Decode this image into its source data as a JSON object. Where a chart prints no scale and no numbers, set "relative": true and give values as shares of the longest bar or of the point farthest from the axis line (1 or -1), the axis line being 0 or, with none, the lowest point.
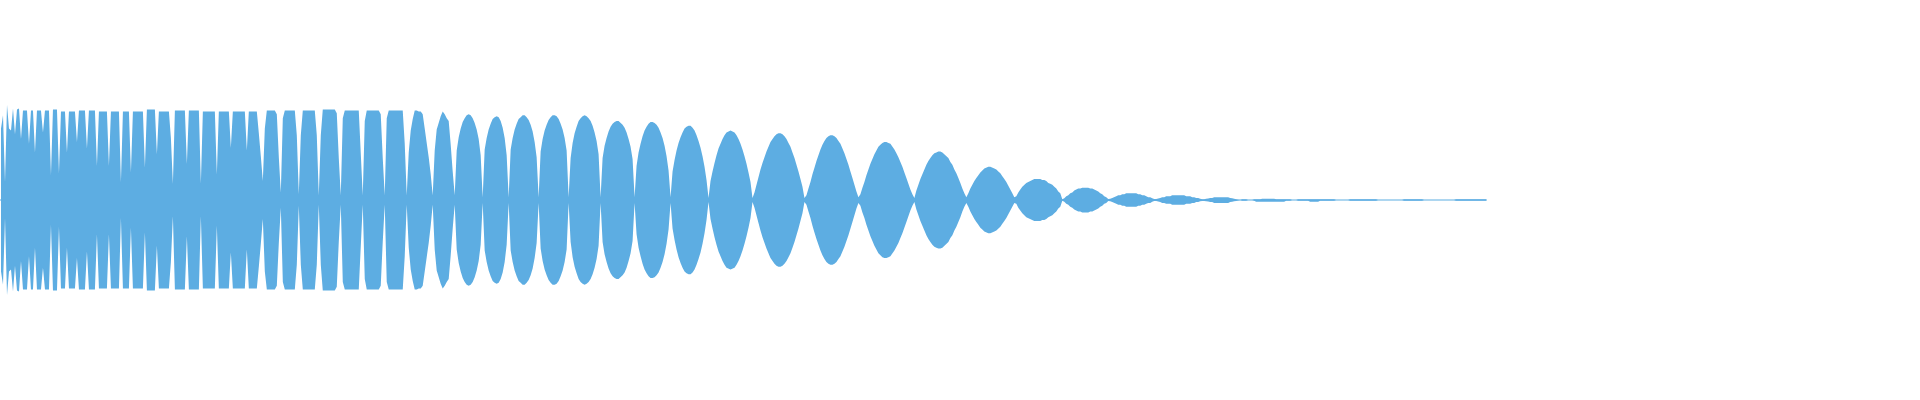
{
  "chart_data": {
    "type": "area",
    "relative": true,
    "tick_labels": false,
    "ref_lines": [
      {
        "axis": "y",
        "value": 0,
        "color": "#5dade2"
      }
    ],
    "categories": [
      null,
      null,
      null,
      null,
      null,
      null,
      null,
      null,
      null,
      null,
      null,
      null,
      null,
      null,
      null,
      null,
      null,
      null,
      null,
      null,
      null,
      null,
      null,
      null,
      null,
      null,
      null,
      null,
      null,
      null,
      null,
      null,
      null,
      null,
      null,
      null,
      null,
      null,
      null,
      null,
      null,
      null,
      null,
      null,
      null,
      null,
      null,
      null,
      null,
      null,
      null,
      null,
      null,
      null,
      null,
      null,
      null,
      null,
      null,
      null,
      null,
      null,
      null,
      null,
      null,
      null,
      null,
      null,
      null,
      null,
      null,
      null,
      null,
      null,
      null,
      null,
      null,
      null,
      null,
      null,
      null,
      null,
      null,
      null,
      null,
      null,
      null,
      null,
      null,
      null,
      null,
      null,
      null,
      null,
      null,
      null,
      null,
      null,
      null,
      null,
      null,
      null,
      null,
      null,
      null,
      null,
      null,
      null,
      null,
      null,
      null,
      null,
      null,
      null,
      null,
      null,
      null,
      null,
      null,
      null,
      null,
      null,
      null,
      null,
      null,
      null,
      null,
      null,
      null,
      null,
      null,
      null,
      null,
      null,
      null,
      null,
      null,
      null,
      null,
      null,
      null,
      null,
      null,
      null,
      null,
      null,
      null,
      null,
      null,
      null,
      null,
      null,
      null,
      null,
      null,
      null,
      null,
      null,
      null,
      null,
      null,
      null,
      null,
      null,
      null,
      null,
      null,
      null,
      null,
      null,
      null,
      null,
      null,
      null,
      null,
      null,
      null,
      null,
      null,
      null,
      null,
      null,
      null,
      null,
      null,
      null,
      null,
      null,
      null,
      null,
      null,
      null,
      null,
      null,
      null,
      null,
      null,
      null,
      null,
      null,
      null,
      null,
      null,
      null,
      null,
      null,
      null,
      null,
      null,
      null,
      null,
      null,
      null,
      null,
      null,
      null,
      null,
      null,
      null,
      null,
      null,
      null,
      null,
      null,
      null,
      null,
      null,
      null,
      null,
      null,
      null,
      null,
      null,
      null,
      null,
      null,
      null,
      null,
      null,
      null,
      null,
      null,
      null,
      null,
      null,
      null,
      null,
      null,
      null,
      null,
      null,
      null,
      null,
      null,
      null,
      null,
      null,
      null,
      null,
      null,
      null,
      null,
      null,
      null,
      null,
      null,
      null,
      null,
      null,
      null,
      null,
      null,
      null,
      null,
      null,
      null,
      null,
      null,
      null,
      null,
      null,
      null,
      null,
      null,
      null,
      null,
      null,
      null,
      null,
      null,
      null,
      null,
      null,
      null,
      null,
      null,
      null,
      null,
      null,
      null,
      null,
      null,
      null,
      null,
      null,
      null,
      null,
      null,
      null,
      null,
      null,
      null,
      null,
      null,
      null,
      null,
      null,
      null,
      null,
      null,
      null,
      null,
      null,
      null,
      null,
      null,
      null,
      null,
      null,
      null,
      null,
      null,
      null,
      null,
      null,
      null,
      null,
      null,
      null,
      null,
      null,
      null,
      null,
      null,
      null,
      null,
      null,
      null,
      null,
      null,
      null,
      null,
      null,
      null,
      null,
      null,
      null,
      null,
      null,
      null,
      null,
      null,
      null,
      null,
      null,
      null,
      null,
      null,
      null,
      null,
      null,
      null,
      null,
      null,
      null,
      null,
      null,
      null,
      null,
      null,
      null,
      null,
      null,
      null,
      null,
      null,
      null,
      null,
      null,
      null,
      null,
      null,
      null,
      null,
      null,
      null,
      null,
      null,
      null,
      null,
      null,
      null,
      null,
      null,
      null,
      null,
      null,
      null,
      null,
      null,
      null,
      null,
      null,
      null,
      null,
      null,
      null,
      null,
      null,
      null,
      null,
      null,
      null,
      null,
      null,
      null,
      null,
      null,
      null,
      null,
      null,
      null,
      null,
      null,
      null,
      null,
      null,
      null,
      null,
      null,
      null,
      null,
      null,
      null,
      null,
      null,
      null,
      null,
      null,
      null,
      null,
      null,
      null,
      null,
      null,
      null,
      null,
      null,
      null,
      null,
      null,
      null,
      null,
      null,
      null,
      null,
      null,
      null,
      null,
      null,
      null,
      null,
      null,
      null,
      null,
      null,
      null,
      null,
      null,
      null,
      null,
      null,
      null,
      null,
      null,
      null,
      null,
      null,
      null,
      null,
      null,
      null,
      null,
      null,
      null,
      null,
      null,
      null,
      null,
      null,
      null,
      null,
      null,
      null,
      null,
      null,
      null,
      null,
      null,
      null,
      null,
      null,
      null,
      null,
      null,
      null,
      null,
      null,
      null,
      null,
      null,
      null,
      null,
      null,
      null,
      null,
      null,
      null,
      null,
      null,
      null,
      null,
      null,
      null,
      null,
      null,
      null,
      null,
      null,
      null,
      null,
      null,
      null,
      null,
      null,
      null,
      null,
      null,
      null,
      null,
      null,
      null,
      null,
      null,
      null,
      null,
      null,
      null,
      null,
      null,
      null,
      null,
      null,
      null,
      null,
      null,
      null,
      null,
      null,
      null,
      null,
      null,
      null,
      null,
      null,
      null,
      null,
      null,
      null,
      null,
      null,
      null,
      null,
      null,
      null,
      null,
      null,
      null,
      null,
      null,
      null,
      null,
      null,
      null,
      null,
      null,
      null,
      null,
      null,
      null,
      null,
      null,
      null,
      null,
      null,
      null,
      null,
      null,
      null,
      null,
      null,
      null,
      null,
      null,
      null,
      null,
      null,
      null,
      null,
      null,
      null,
      null,
      null,
      null,
      null,
      null,
      null,
      null,
      null,
      null,
      null,
      null,
      null,
      null,
      null,
      null,
      null,
      null,
      null,
      null,
      null,
      null,
      null,
      null,
      null,
      null,
      null,
      null,
      null,
      null,
      null,
      null,
      null,
      null,
      null,
      null,
      null,
      null,
      null,
      null,
      null,
      null,
      null,
      null,
      null,
      null,
      null,
      null,
      null,
      null,
      null,
      null,
      null,
      null,
      null,
      null,
      null,
      null,
      null,
      null,
      null,
      null,
      null,
      null,
      null,
      null,
      null,
      null,
      null,
      null,
      null,
      null,
      null,
      null,
      null,
      null,
      null,
      null,
      null,
      null,
      null,
      null,
      null,
      null,
      null,
      null,
      null,
      null,
      null,
      null,
      null,
      null,
      null,
      null,
      null,
      null,
      null,
      null,
      null,
      null,
      null,
      null,
      null,
      null,
      null,
      null,
      null,
      null,
      null,
      null,
      null,
      null,
      null,
      null,
      null,
      null,
      null,
      null,
      null,
      null,
      null,
      null,
      null,
      null
    ],
    "series": [
      {
        "color": "#5dade2",
        "values": [
          0.75,
          0.89,
          0.19,
          1,
          0.75,
          0.73,
          0.96,
          0.69,
          0.95,
          0.96,
          0.64,
          0.94,
          0.94,
          0.94,
          0.59,
          0.94,
          0.94,
          0.5,
          0.94,
          0.94,
          0.94,
          0.71,
          0.94,
          0.94,
          0.94,
          0.26,
          0.95,
          0.95,
          0.95,
          0.28,
          0.93,
          0.93,
          0.93,
          0.5,
          0.93,
          0.93,
          0.93,
          0.93,
          0.61,
          0.94,
          0.94,
          0.94,
          0.94,
          0.54,
          0.94,
          0.94,
          0.94,
          0.94,
          0.36,
          0.93,
          0.93,
          0.93,
          0.93,
          0.93,
          0.36,
          0.93,
          0.93,
          0.93,
          0.93,
          0.93,
          0.19,
          0.93,
          0.93,
          0.93,
          0.93,
          0.29,
          0.93,
          0.93,
          0.93,
          0.93,
          0.93,
          0.93,
          0.34,
          0.95,
          0.95,
          0.95,
          0.95,
          0.95,
          0.48,
          0.93,
          0.93,
          0.93,
          0.93,
          0.93,
          0.93,
          0.65,
          0.17,
          0.94,
          0.94,
          0.94,
          0.94,
          0.94,
          0.94,
          0.38,
          0.94,
          0.94,
          0.94,
          0.94,
          0.94,
          0.94,
          0.17,
          0.93,
          0.93,
          0.93,
          0.93,
          0.93,
          0.93,
          0.93,
          0.27,
          0.93,
          0.93,
          0.93,
          0.93,
          0.93,
          0.93,
          0.55,
          0.93,
          0.93,
          0.93,
          0.93,
          0.93,
          0.93,
          0.93,
          0.52,
          0.93,
          0.93,
          0.93,
          0.93,
          0.93,
          0.7,
          0.46,
          0.2,
          0.75,
          0.94,
          0.94,
          0.94,
          0.94,
          0.94,
          0.9,
          0.45,
          0.08,
          0.86,
          0.94,
          0.94,
          0.94,
          0.94,
          0.94,
          0.94,
          0.68,
          0.06,
          0.68,
          0.94,
          0.94,
          0.94,
          0.94,
          0.94,
          0.94,
          0.94,
          0.68,
          0.05,
          0.68,
          0.95,
          0.95,
          0.95,
          0.95,
          0.95,
          0.95,
          0.95,
          0.91,
          0.44,
          0.05,
          0.86,
          0.94,
          0.94,
          0.94,
          0.94,
          0.94,
          0.94,
          0.94,
          0.94,
          0.49,
          0.05,
          0.83,
          0.94,
          0.94,
          0.94,
          0.94,
          0.94,
          0.94,
          0.94,
          0.9,
          0.44,
          0.05,
          0.86,
          0.94,
          0.94,
          0.94,
          0.94,
          0.94,
          0.94,
          0.94,
          0.94,
          0.59,
          0.05,
          0.5,
          0.73,
          0.85,
          0.94,
          0.94,
          0.93,
          0.93,
          0.9,
          0.75,
          0.6,
          0.45,
          0.27,
          0.05,
          0.52,
          0.74,
          0.81,
          0.88,
          0.93,
          0.9,
          0.86,
          0.83,
          0.58,
          0.3,
          0.05,
          0.52,
          0.66,
          0.75,
          0.82,
          0.86,
          0.89,
          0.9,
          0.89,
          0.86,
          0.81,
          0.74,
          0.64,
          0.47,
          0.03,
          0.53,
          0.65,
          0.74,
          0.8,
          0.85,
          0.87,
          0.88,
          0.87,
          0.83,
          0.76,
          0.65,
          0.47,
          0.03,
          0.53,
          0.65,
          0.74,
          0.8,
          0.85,
          0.87,
          0.89,
          0.89,
          0.87,
          0.84,
          0.79,
          0.72,
          0.61,
          0.45,
          0.03,
          0.51,
          0.64,
          0.73,
          0.79,
          0.84,
          0.87,
          0.89,
          0.89,
          0.88,
          0.85,
          0.8,
          0.74,
          0.65,
          0.52,
          0.03,
          0.44,
          0.6,
          0.7,
          0.77,
          0.83,
          0.86,
          0.88,
          0.89,
          0.88,
          0.86,
          0.83,
          0.78,
          0.71,
          0.62,
          0.48,
          0.03,
          0.44,
          0.57,
          0.65,
          0.72,
          0.77,
          0.8,
          0.82,
          0.83,
          0.83,
          0.81,
          0.79,
          0.76,
          0.71,
          0.64,
          0.56,
          0.43,
          0.03,
          0.36,
          0.5,
          0.59,
          0.67,
          0.73,
          0.77,
          0.8,
          0.82,
          0.82,
          0.81,
          0.79,
          0.76,
          0.71,
          0.65,
          0.57,
          0.46,
          0.31,
          0.03,
          0.3,
          0.42,
          0.52,
          0.6,
          0.66,
          0.71,
          0.75,
          0.77,
          0.78,
          0.78,
          0.76,
          0.73,
          0.68,
          0.62,
          0.55,
          0.46,
          0.35,
          0.21,
          0.02,
          0.2,
          0.3,
          0.39,
          0.47,
          0.54,
          0.59,
          0.64,
          0.68,
          0.71,
          0.72,
          0.73,
          0.72,
          0.71,
          0.68,
          0.64,
          0.59,
          0.53,
          0.46,
          0.38,
          0.29,
          0.19,
          0.02,
          0.08,
          0.16,
          0.24,
          0.32,
          0.39,
          0.45,
          0.51,
          0.56,
          0.61,
          0.64,
          0.67,
          0.69,
          0.7,
          0.7,
          0.69,
          0.67,
          0.64,
          0.6,
          0.56,
          0.5,
          0.44,
          0.37,
          0.3,
          0.22,
          0.14,
          0.02,
          0.05,
          0.12,
          0.19,
          0.27,
          0.34,
          0.41,
          0.47,
          0.53,
          0.58,
          0.62,
          0.65,
          0.67,
          0.68,
          0.68,
          0.67,
          0.65,
          0.62,
          0.59,
          0.54,
          0.49,
          0.43,
          0.37,
          0.3,
          0.23,
          0.16,
          0.09,
          0.03,
          0.06,
          0.13,
          0.19,
          0.26,
          0.32,
          0.38,
          0.43,
          0.48,
          0.52,
          0.56,
          0.58,
          0.6,
          0.61,
          0.61,
          0.6,
          0.59,
          0.56,
          0.53,
          0.49,
          0.45,
          0.4,
          0.35,
          0.29,
          0.23,
          0.17,
          0.11,
          0.06,
          0.02,
          0.1,
          0.16,
          0.22,
          0.27,
          0.32,
          0.37,
          0.41,
          0.44,
          0.47,
          0.49,
          0.5,
          0.51,
          0.51,
          0.5,
          0.48,
          0.46,
          0.44,
          0.4,
          0.37,
          0.32,
          0.28,
          0.23,
          0.18,
          0.12,
          0.07,
          0.03,
          0.07,
          0.12,
          0.16,
          0.2,
          0.23,
          0.26,
          0.29,
          0.31,
          0.33,
          0.34,
          0.35,
          0.35,
          0.34,
          0.33,
          0.32,
          0.3,
          0.28,
          0.25,
          0.22,
          0.19,
          0.15,
          0.11,
          0.07,
          0.03,
          0.04,
          0.08,
          0.11,
          0.14,
          0.16,
          0.18,
          0.19,
          0.2,
          0.21,
          0.22,
          0.22,
          0.22,
          0.22,
          0.21,
          0.21,
          0.2,
          0.18,
          0.17,
          0.16,
          0.14,
          0.12,
          0.09,
          0.07,
          0.007,
          0.019,
          0.04,
          0.05,
          0.07,
          0.08,
          0.1,
          0.11,
          0.12,
          0.12,
          0.13,
          0.13,
          0.13,
          0.13,
          0.12,
          0.12,
          0.11,
          0.1,
          0.09,
          0.07,
          0.06,
          0.04,
          0.03,
          0.01,
          0.014,
          0.02,
          0.03,
          0.04,
          0.05,
          0.05,
          0.06,
          0.06,
          0.07,
          0.07,
          0.07,
          0.07,
          0.07,
          0.07,
          0.06,
          0.06,
          0.05,
          0.05,
          0.04,
          0.03,
          0.03,
          0.019,
          0.011,
          0.01,
          0.016,
          0.02,
          0.03,
          0.03,
          0.04,
          0.04,
          0.04,
          0.05,
          0.05,
          0.05,
          0.05,
          0.05,
          0.05,
          0.05,
          0.04,
          0.04,
          0.04,
          0.03,
          0.03,
          0.02,
          0.02,
          0.014,
          0.009,
          0.009,
          0.013,
          0.016,
          0.02,
          0.02,
          0.03,
          0.03,
          0.03,
          0.03,
          0.03,
          0.03,
          0.03,
          0.03,
          0.02,
          0.019,
          0.014,
          0.009,
          0.004,
          0,
          0.007,
          0.007,
          0.007,
          0,
          0,
          0,
          0.007,
          0.007,
          0.007,
          0.007,
          0.014,
          0.014,
          0.014,
          0.014,
          0.014,
          0.014,
          0.014,
          0.007,
          0.007,
          0.007,
          0.007,
          0.007,
          0.007,
          0.007,
          0.007,
          0,
          0,
          0,
          0.007,
          0.007,
          0.007,
          0.007,
          0.007,
          0.007,
          0.007,
          0.007,
          0.007,
          0.007,
          0.007,
          0.007,
          0.007,
          0.007,
          0.007,
          0.007,
          0.007,
          0.007,
          0.007,
          0,
          0,
          0,
          0,
          0,
          0,
          0,
          0.007,
          0.007,
          0.007,
          0.007,
          0.007,
          0.007,
          0.007,
          0.007,
          0.007,
          0.007,
          0.007,
          0.007,
          0.007,
          0.007,
          0,
          0,
          0,
          0,
          0,
          0,
          0,
          0,
          0,
          0,
          0,
          0,
          0,
          0.007,
          0.007,
          0.007,
          0.007,
          0.007,
          0.007,
          0.007,
          0.007,
          0.007,
          0.007,
          0,
          0,
          0,
          0,
          0,
          0,
          0,
          0,
          0,
          0,
          0,
          0,
          0,
          0,
          0,
          0,
          0.007,
          0.007,
          0.007,
          0.007,
          0.007,
          0.007,
          0.007,
          0.007,
          0.007,
          0.007,
          0.007,
          0.007,
          0.007,
          0.007,
          0.007,
          0.007
        ]
      },
      {
        "color": "#5dade2",
        "values": [
          -0.75,
          -0.89,
          -0.19,
          -1,
          -0.75,
          -0.73,
          -0.96,
          -0.69,
          -0.95,
          -0.96,
          -0.64,
          -0.94,
          -0.94,
          -0.94,
          -0.59,
          -0.94,
          -0.94,
          -0.5,
          -0.94,
          -0.94,
          -0.94,
          -0.71,
          -0.94,
          -0.94,
          -0.94,
          -0.26,
          -0.95,
          -0.95,
          -0.95,
          -0.28,
          -0.93,
          -0.93,
          -0.93,
          -0.5,
          -0.93,
          -0.93,
          -0.93,
          -0.93,
          -0.61,
          -0.94,
          -0.94,
          -0.94,
          -0.94,
          -0.54,
          -0.94,
          -0.94,
          -0.94,
          -0.94,
          -0.36,
          -0.93,
          -0.93,
          -0.93,
          -0.93,
          -0.93,
          -0.36,
          -0.93,
          -0.93,
          -0.93,
          -0.93,
          -0.93,
          -0.19,
          -0.93,
          -0.93,
          -0.93,
          -0.93,
          -0.29,
          -0.93,
          -0.93,
          -0.93,
          -0.93,
          -0.93,
          -0.93,
          -0.34,
          -0.95,
          -0.95,
          -0.95,
          -0.95,
          -0.95,
          -0.48,
          -0.93,
          -0.93,
          -0.93,
          -0.93,
          -0.93,
          -0.93,
          -0.65,
          -0.17,
          -0.94,
          -0.94,
          -0.94,
          -0.94,
          -0.94,
          -0.94,
          -0.38,
          -0.94,
          -0.94,
          -0.94,
          -0.94,
          -0.94,
          -0.94,
          -0.17,
          -0.93,
          -0.93,
          -0.93,
          -0.93,
          -0.93,
          -0.93,
          -0.93,
          -0.27,
          -0.93,
          -0.93,
          -0.93,
          -0.93,
          -0.93,
          -0.93,
          -0.55,
          -0.93,
          -0.93,
          -0.93,
          -0.93,
          -0.93,
          -0.93,
          -0.93,
          -0.52,
          -0.93,
          -0.93,
          -0.93,
          -0.93,
          -0.93,
          -0.7,
          -0.46,
          -0.2,
          -0.75,
          -0.94,
          -0.94,
          -0.94,
          -0.94,
          -0.94,
          -0.9,
          -0.45,
          -0.08,
          -0.86,
          -0.94,
          -0.94,
          -0.94,
          -0.94,
          -0.94,
          -0.94,
          -0.68,
          -0.06,
          -0.68,
          -0.94,
          -0.94,
          -0.94,
          -0.94,
          -0.94,
          -0.94,
          -0.94,
          -0.68,
          -0.05,
          -0.68,
          -0.95,
          -0.95,
          -0.95,
          -0.95,
          -0.95,
          -0.95,
          -0.95,
          -0.91,
          -0.44,
          -0.05,
          -0.86,
          -0.94,
          -0.94,
          -0.94,
          -0.94,
          -0.94,
          -0.94,
          -0.94,
          -0.94,
          -0.49,
          -0.05,
          -0.83,
          -0.94,
          -0.94,
          -0.94,
          -0.94,
          -0.94,
          -0.94,
          -0.94,
          -0.9,
          -0.44,
          -0.05,
          -0.86,
          -0.94,
          -0.94,
          -0.94,
          -0.94,
          -0.94,
          -0.94,
          -0.94,
          -0.94,
          -0.59,
          -0.05,
          -0.5,
          -0.73,
          -0.85,
          -0.94,
          -0.94,
          -0.93,
          -0.93,
          -0.9,
          -0.75,
          -0.6,
          -0.45,
          -0.27,
          -0.05,
          -0.52,
          -0.74,
          -0.81,
          -0.88,
          -0.93,
          -0.9,
          -0.86,
          -0.83,
          -0.58,
          -0.3,
          -0.05,
          -0.52,
          -0.66,
          -0.75,
          -0.82,
          -0.86,
          -0.89,
          -0.9,
          -0.89,
          -0.86,
          -0.81,
          -0.74,
          -0.64,
          -0.47,
          -0.03,
          -0.53,
          -0.65,
          -0.74,
          -0.8,
          -0.85,
          -0.87,
          -0.88,
          -0.87,
          -0.83,
          -0.76,
          -0.65,
          -0.47,
          -0.03,
          -0.53,
          -0.65,
          -0.74,
          -0.8,
          -0.85,
          -0.87,
          -0.89,
          -0.89,
          -0.87,
          -0.84,
          -0.79,
          -0.72,
          -0.61,
          -0.45,
          -0.03,
          -0.51,
          -0.64,
          -0.73,
          -0.79,
          -0.84,
          -0.87,
          -0.89,
          -0.89,
          -0.88,
          -0.85,
          -0.8,
          -0.74,
          -0.65,
          -0.52,
          -0.03,
          -0.44,
          -0.6,
          -0.7,
          -0.77,
          -0.83,
          -0.86,
          -0.88,
          -0.89,
          -0.88,
          -0.86,
          -0.83,
          -0.78,
          -0.71,
          -0.62,
          -0.48,
          -0.03,
          -0.44,
          -0.57,
          -0.65,
          -0.72,
          -0.77,
          -0.8,
          -0.82,
          -0.83,
          -0.83,
          -0.81,
          -0.79,
          -0.76,
          -0.71,
          -0.64,
          -0.56,
          -0.43,
          -0.03,
          -0.36,
          -0.5,
          -0.59,
          -0.67,
          -0.73,
          -0.77,
          -0.8,
          -0.82,
          -0.82,
          -0.81,
          -0.79,
          -0.76,
          -0.71,
          -0.65,
          -0.57,
          -0.46,
          -0.31,
          -0.03,
          -0.3,
          -0.42,
          -0.52,
          -0.6,
          -0.66,
          -0.71,
          -0.75,
          -0.77,
          -0.78,
          -0.78,
          -0.76,
          -0.73,
          -0.68,
          -0.62,
          -0.55,
          -0.46,
          -0.35,
          -0.21,
          -0.02,
          -0.2,
          -0.3,
          -0.39,
          -0.47,
          -0.54,
          -0.59,
          -0.64,
          -0.68,
          -0.71,
          -0.72,
          -0.73,
          -0.72,
          -0.71,
          -0.68,
          -0.64,
          -0.59,
          -0.53,
          -0.46,
          -0.38,
          -0.29,
          -0.19,
          -0.02,
          -0.08,
          -0.16,
          -0.24,
          -0.32,
          -0.39,
          -0.45,
          -0.51,
          -0.56,
          -0.61,
          -0.64,
          -0.67,
          -0.69,
          -0.7,
          -0.7,
          -0.69,
          -0.67,
          -0.64,
          -0.6,
          -0.56,
          -0.5,
          -0.44,
          -0.37,
          -0.3,
          -0.22,
          -0.14,
          -0.02,
          -0.05,
          -0.12,
          -0.19,
          -0.27,
          -0.34,
          -0.41,
          -0.47,
          -0.53,
          -0.58,
          -0.62,
          -0.65,
          -0.67,
          -0.68,
          -0.68,
          -0.67,
          -0.65,
          -0.62,
          -0.59,
          -0.54,
          -0.49,
          -0.43,
          -0.37,
          -0.3,
          -0.23,
          -0.16,
          -0.09,
          -0.03,
          -0.06,
          -0.13,
          -0.19,
          -0.26,
          -0.32,
          -0.38,
          -0.43,
          -0.48,
          -0.52,
          -0.56,
          -0.58,
          -0.6,
          -0.61,
          -0.61,
          -0.6,
          -0.59,
          -0.56,
          -0.53,
          -0.49,
          -0.45,
          -0.4,
          -0.35,
          -0.29,
          -0.23,
          -0.17,
          -0.11,
          -0.06,
          -0.02,
          -0.1,
          -0.16,
          -0.22,
          -0.27,
          -0.32,
          -0.37,
          -0.41,
          -0.44,
          -0.47,
          -0.49,
          -0.5,
          -0.51,
          -0.51,
          -0.5,
          -0.48,
          -0.46,
          -0.44,
          -0.4,
          -0.37,
          -0.32,
          -0.28,
          -0.23,
          -0.18,
          -0.12,
          -0.07,
          -0.03,
          -0.07,
          -0.12,
          -0.16,
          -0.2,
          -0.23,
          -0.26,
          -0.29,
          -0.31,
          -0.33,
          -0.34,
          -0.35,
          -0.35,
          -0.34,
          -0.33,
          -0.32,
          -0.3,
          -0.28,
          -0.25,
          -0.22,
          -0.19,
          -0.15,
          -0.11,
          -0.07,
          -0.03,
          -0.04,
          -0.08,
          -0.11,
          -0.14,
          -0.16,
          -0.18,
          -0.19,
          -0.2,
          -0.21,
          -0.22,
          -0.22,
          -0.22,
          -0.22,
          -0.21,
          -0.21,
          -0.2,
          -0.18,
          -0.17,
          -0.16,
          -0.14,
          -0.12,
          -0.09,
          -0.07,
          -0.007,
          -0.019,
          -0.04,
          -0.05,
          -0.07,
          -0.08,
          -0.1,
          -0.11,
          -0.12,
          -0.12,
          -0.13,
          -0.13,
          -0.13,
          -0.13,
          -0.12,
          -0.12,
          -0.11,
          -0.1,
          -0.09,
          -0.07,
          -0.06,
          -0.04,
          -0.03,
          -0.01,
          -0.014,
          -0.02,
          -0.03,
          -0.04,
          -0.05,
          -0.05,
          -0.06,
          -0.06,
          -0.07,
          -0.07,
          -0.07,
          -0.07,
          -0.07,
          -0.07,
          -0.06,
          -0.06,
          -0.05,
          -0.05,
          -0.04,
          -0.03,
          -0.03,
          -0.019,
          -0.011,
          -0.01,
          -0.016,
          -0.02,
          -0.03,
          -0.03,
          -0.04,
          -0.04,
          -0.04,
          -0.05,
          -0.05,
          -0.05,
          -0.05,
          -0.05,
          -0.05,
          -0.05,
          -0.04,
          -0.04,
          -0.04,
          -0.03,
          -0.03,
          -0.02,
          -0.02,
          -0.014,
          -0.009,
          -0.009,
          -0.013,
          -0.016,
          -0.02,
          -0.02,
          -0.03,
          -0.03,
          -0.03,
          -0.03,
          -0.03,
          -0.03,
          -0.03,
          -0.03,
          -0.02,
          -0.019,
          -0.014,
          -0.009,
          -0.004,
          0,
          -0.007,
          -0.007,
          -0.007,
          0,
          0,
          0,
          -0.007,
          -0.018,
          -0.018,
          -0.018,
          -0.018,
          -0.018,
          -0.018,
          -0.018,
          -0.018,
          -0.018,
          -0.018,
          -0.018,
          -0.018,
          -0.018,
          -0.018,
          -0.018,
          -0.007,
          -0.007,
          -0.007,
          0,
          0,
          0,
          -0.007,
          -0.007,
          -0.007,
          -0.007,
          -0.007,
          -0.007,
          -0.018,
          -0.018,
          -0.018,
          -0.018,
          -0.018,
          -0.007,
          -0.007,
          -0.007,
          -0.007,
          -0.007,
          -0.007,
          -0.007,
          -0.007,
          0,
          0,
          0,
          0,
          0,
          0,
          0,
          -0.007,
          -0.007,
          -0.007,
          -0.007,
          -0.007,
          -0.007,
          -0.007,
          -0.007,
          -0.007,
          -0.007,
          -0.007,
          -0.007,
          -0.007,
          -0.007,
          0,
          0,
          0,
          0,
          0,
          0,
          0,
          0,
          0,
          0,
          0,
          0,
          0,
          -0.007,
          -0.007,
          -0.007,
          -0.007,
          -0.007,
          -0.007,
          -0.007,
          -0.007,
          -0.007,
          -0.007,
          0,
          0,
          0,
          0,
          0,
          0,
          0,
          0,
          0,
          0,
          0,
          0,
          0,
          0,
          0,
          0,
          -0.007,
          -0.007,
          -0.007,
          -0.007,
          -0.007,
          -0.007,
          -0.007,
          -0.007,
          -0.007,
          -0.007,
          -0.007,
          -0.007,
          -0.007,
          -0.007,
          -0.007,
          -0.007
        ]
      }
    ]
  }
}
